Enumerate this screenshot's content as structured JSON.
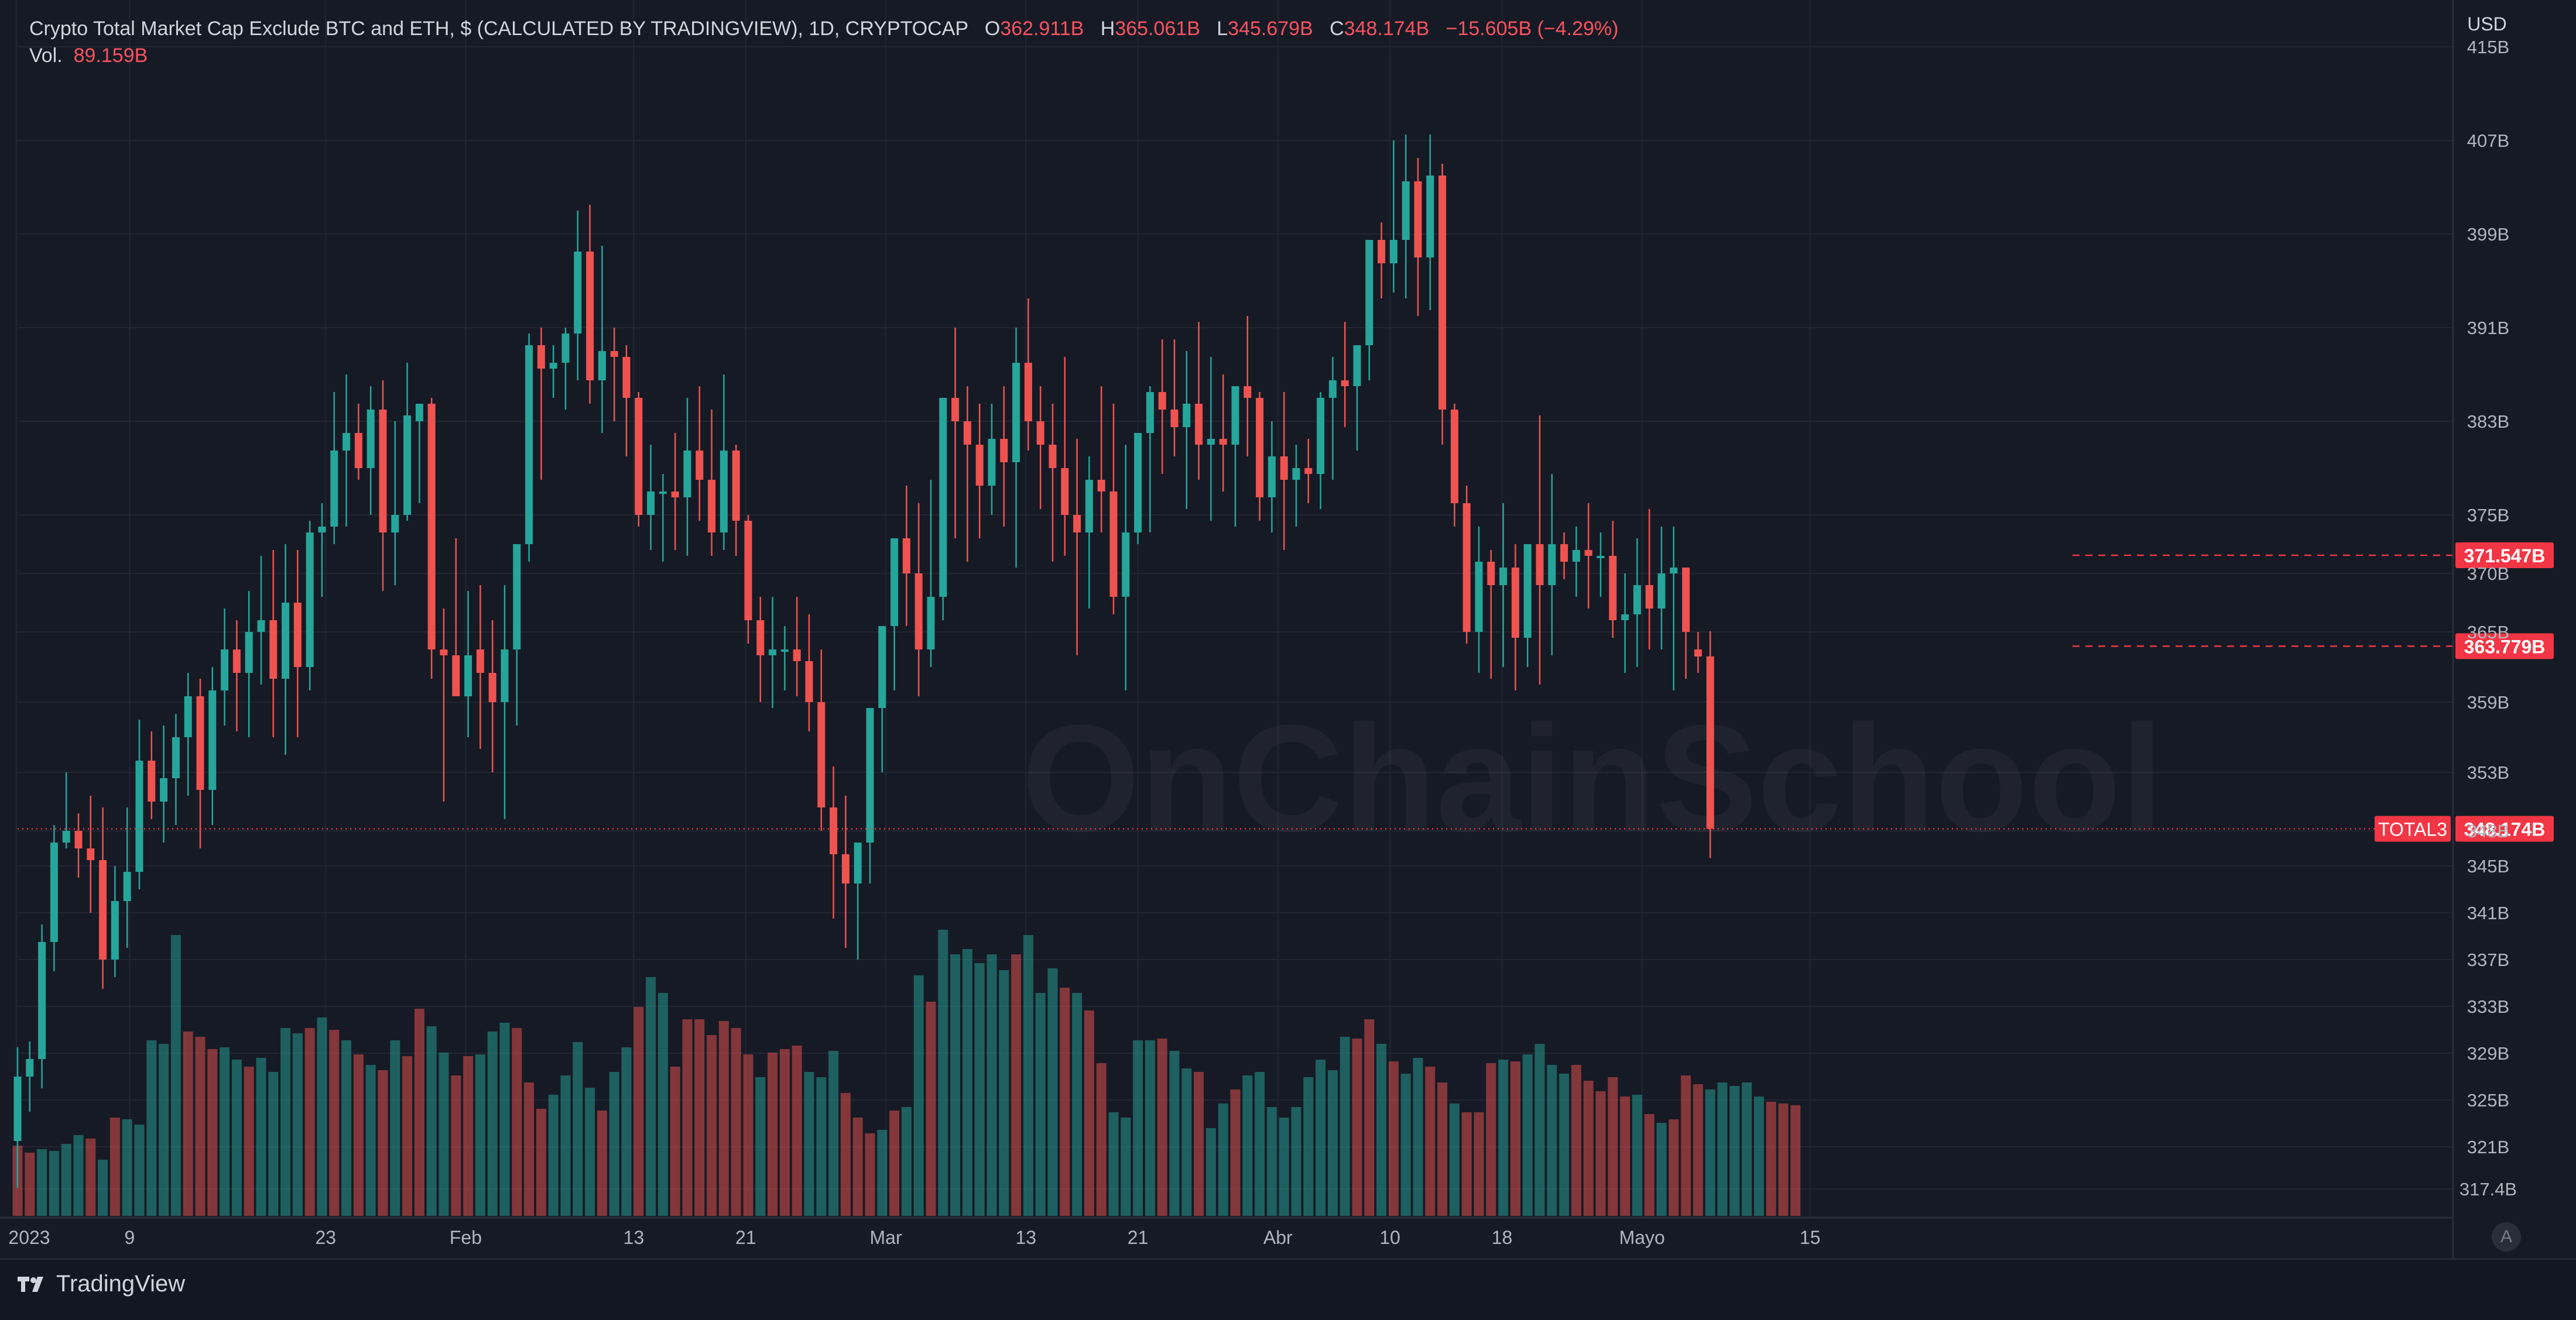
{
  "legend": {
    "symbol": "Crypto Total Market Cap Exclude BTC and ETH, $ (CALCULATED BY TRADINGVIEW), 1D, CRYPTOCAP",
    "o_label": "O",
    "o_val": "362.911B",
    "h_label": "H",
    "h_val": "365.061B",
    "l_label": "L",
    "l_val": "345.679B",
    "c_label": "C",
    "c_val": "348.174B",
    "change": "−15.605B (−4.29%)",
    "vol_label": "Vol.",
    "vol_val": "89.159B"
  },
  "brand": "TradingView",
  "watermark": "OnChainSchool",
  "auto_button": "A",
  "colors": {
    "up": "#26a69a",
    "down": "#ef5350",
    "bg": "#161a25",
    "grid": "#232632",
    "text": "#b2b5be",
    "badge": "#f23645"
  },
  "chart_data": {
    "type": "candlestick",
    "title": "Crypto Total Market Cap Exclude BTC and ETH, $ (CALCULATED BY TRADINGVIEW), 1D, CRYPTOCAP",
    "currency": "USD",
    "y_unit": "B",
    "ylim": [
      316,
      416
    ],
    "y_ticks": [
      "415B",
      "407B",
      "399B",
      "391B",
      "383B",
      "375B",
      "370B",
      "365B",
      "359B",
      "353B",
      "348B",
      "345B",
      "341B",
      "337B",
      "333B",
      "329B",
      "325B",
      "321B",
      "317.4B"
    ],
    "x_ticks": [
      "2023",
      "9",
      "23",
      "Feb",
      "13",
      "21",
      "Mar",
      "13",
      "21",
      "Abr",
      "10",
      "18",
      "Mayo",
      "15"
    ],
    "grid": true,
    "price_scale_labels": [
      {
        "label": "371.547B",
        "value": 371.547,
        "style": "dashed"
      },
      {
        "label": "363.779B",
        "value": 363.779,
        "style": "dashed"
      },
      {
        "label": "348.174B",
        "value": 348.174,
        "style": "dotted",
        "tag": "TOTAL3"
      }
    ],
    "series_ohlc": [
      [
        321.5,
        329.5,
        317.5,
        327.0
      ],
      [
        327.0,
        330.0,
        324.0,
        328.5
      ],
      [
        328.5,
        340.0,
        326.0,
        338.5
      ],
      [
        338.5,
        348.5,
        336.0,
        347.0
      ],
      [
        347.0,
        353.0,
        346.5,
        348.0
      ],
      [
        348.0,
        349.5,
        344.0,
        346.5
      ],
      [
        346.5,
        351.0,
        341.0,
        345.5
      ],
      [
        345.5,
        350.0,
        334.5,
        337.0
      ],
      [
        337.0,
        345.0,
        335.5,
        342.0
      ],
      [
        342.0,
        350.0,
        338.0,
        344.5
      ],
      [
        344.5,
        357.5,
        343.0,
        354.0
      ],
      [
        354.0,
        356.5,
        349.0,
        350.5
      ],
      [
        350.5,
        357.0,
        347.0,
        352.5
      ],
      [
        352.5,
        358.0,
        348.5,
        356.0
      ],
      [
        356.0,
        361.5,
        351.0,
        359.5
      ],
      [
        359.5,
        361.0,
        346.5,
        351.5
      ],
      [
        351.5,
        362.0,
        348.5,
        360.0
      ],
      [
        360.0,
        367.0,
        357.0,
        363.5
      ],
      [
        363.5,
        366.0,
        356.5,
        361.5
      ],
      [
        361.5,
        368.5,
        356.0,
        365.0
      ],
      [
        365.0,
        371.5,
        360.5,
        366.0
      ],
      [
        366.0,
        372.0,
        356.0,
        361.0
      ],
      [
        361.0,
        372.5,
        354.5,
        367.5
      ],
      [
        367.5,
        372.0,
        356.0,
        362.0
      ],
      [
        362.0,
        374.5,
        360.0,
        373.5
      ],
      [
        373.5,
        376.0,
        368.0,
        374.0
      ],
      [
        374.0,
        385.5,
        372.5,
        380.5
      ],
      [
        380.5,
        387.0,
        374.0,
        382.0
      ],
      [
        382.0,
        384.5,
        378.0,
        379.0
      ],
      [
        379.0,
        386.0,
        375.0,
        384.0
      ],
      [
        384.0,
        386.5,
        368.5,
        373.5
      ],
      [
        373.5,
        383.0,
        369.0,
        375.0
      ],
      [
        375.0,
        388.0,
        374.5,
        383.5
      ],
      [
        383.0,
        384.5,
        376.0,
        384.5
      ],
      [
        384.5,
        385.0,
        361.0,
        363.5
      ],
      [
        363.5,
        367.0,
        350.5,
        363.0
      ],
      [
        363.0,
        373.0,
        360.0,
        359.5
      ],
      [
        359.5,
        368.5,
        356.0,
        363.0
      ],
      [
        363.5,
        369.0,
        355.0,
        361.5
      ],
      [
        361.5,
        366.0,
        353.0,
        359.0
      ],
      [
        359.0,
        369.0,
        349.0,
        363.5
      ],
      [
        363.5,
        369.5,
        357.0,
        372.5
      ],
      [
        372.5,
        390.5,
        371.0,
        389.5
      ],
      [
        389.5,
        391.0,
        378.0,
        387.5
      ],
      [
        387.5,
        389.5,
        385.0,
        388.0
      ],
      [
        388.0,
        391.0,
        384.0,
        390.5
      ],
      [
        390.5,
        401.0,
        386.5,
        397.5
      ],
      [
        397.5,
        401.5,
        384.5,
        386.5
      ],
      [
        386.5,
        398.0,
        382.0,
        389.0
      ],
      [
        389.0,
        391.0,
        383.0,
        388.5
      ],
      [
        388.5,
        389.5,
        380.0,
        385.0
      ],
      [
        385.0,
        385.5,
        374.0,
        375.0
      ],
      [
        375.0,
        381.0,
        372.0,
        377.0
      ],
      [
        377.0,
        378.5,
        371.0,
        377.0
      ],
      [
        377.0,
        382.0,
        372.0,
        376.5
      ],
      [
        376.5,
        385.0,
        371.5,
        380.5
      ],
      [
        380.5,
        386.0,
        374.5,
        378.0
      ],
      [
        378.0,
        384.0,
        371.5,
        373.5
      ],
      [
        373.5,
        387.0,
        372.0,
        380.5
      ],
      [
        380.5,
        381.0,
        371.5,
        374.5
      ],
      [
        374.5,
        375.0,
        364.0,
        366.0
      ],
      [
        366.0,
        368.0,
        359.0,
        363.0
      ],
      [
        363.0,
        368.0,
        358.5,
        363.5
      ],
      [
        363.5,
        365.5,
        360.0,
        363.5
      ],
      [
        363.5,
        368.0,
        359.5,
        362.5
      ],
      [
        362.5,
        366.5,
        356.5,
        359.0
      ],
      [
        359.0,
        363.5,
        348.0,
        350.0
      ],
      [
        350.0,
        353.5,
        340.5,
        346.0
      ],
      [
        346.0,
        351.0,
        338.0,
        343.5
      ],
      [
        343.5,
        346.0,
        337.0,
        347.0
      ],
      [
        347.0,
        357.0,
        343.5,
        358.5
      ],
      [
        358.5,
        365.0,
        353.0,
        365.5
      ],
      [
        365.5,
        372.0,
        360.0,
        373.0
      ],
      [
        373.0,
        377.5,
        365.5,
        370.0
      ],
      [
        370.0,
        376.0,
        359.5,
        363.5
      ],
      [
        363.5,
        378.0,
        362.0,
        368.0
      ],
      [
        368.0,
        381.5,
        366.0,
        385.0
      ],
      [
        385.0,
        391.0,
        373.0,
        383.0
      ],
      [
        383.0,
        386.0,
        371.0,
        381.0
      ],
      [
        381.0,
        384.5,
        373.0,
        377.5
      ],
      [
        377.5,
        384.5,
        375.0,
        381.5
      ],
      [
        381.5,
        386.0,
        374.0,
        379.5
      ],
      [
        379.5,
        391.0,
        370.5,
        388.0
      ],
      [
        388.0,
        393.5,
        380.5,
        383.0
      ],
      [
        383.0,
        386.0,
        375.5,
        381.0
      ],
      [
        381.0,
        384.5,
        371.0,
        379.0
      ],
      [
        379.0,
        388.5,
        371.5,
        375.0
      ],
      [
        375.0,
        381.5,
        363.0,
        373.5
      ],
      [
        373.5,
        380.0,
        367.0,
        378.0
      ],
      [
        378.0,
        386.0,
        373.5,
        377.0
      ],
      [
        377.0,
        384.5,
        366.5,
        368.0
      ],
      [
        368.0,
        381.0,
        360.0,
        373.5
      ],
      [
        373.5,
        381.5,
        372.5,
        382.0
      ],
      [
        382.0,
        386.0,
        373.5,
        385.5
      ],
      [
        385.5,
        390.0,
        378.5,
        384.0
      ],
      [
        384.0,
        390.0,
        380.0,
        382.5
      ],
      [
        382.5,
        389.0,
        375.5,
        384.5
      ],
      [
        384.5,
        391.5,
        378.0,
        381.0
      ],
      [
        381.0,
        388.5,
        374.5,
        381.5
      ],
      [
        381.5,
        387.0,
        377.0,
        381.0
      ],
      [
        381.0,
        385.0,
        374.0,
        386.0
      ],
      [
        386.0,
        392.0,
        380.0,
        385.0
      ],
      [
        385.0,
        385.5,
        374.5,
        376.5
      ],
      [
        376.5,
        383.0,
        373.5,
        380.0
      ],
      [
        380.0,
        385.5,
        372.0,
        378.0
      ],
      [
        378.0,
        381.0,
        374.0,
        379.0
      ],
      [
        379.0,
        381.5,
        376.0,
        378.5
      ],
      [
        378.5,
        385.5,
        375.5,
        385.0
      ],
      [
        385.0,
        388.5,
        378.0,
        386.5
      ],
      [
        386.5,
        391.5,
        382.5,
        386.0
      ],
      [
        386.0,
        388.0,
        380.5,
        389.5
      ],
      [
        389.5,
        393.0,
        386.5,
        398.5
      ],
      [
        398.5,
        400.0,
        393.5,
        396.5
      ],
      [
        396.5,
        407.0,
        394.0,
        398.5
      ],
      [
        398.5,
        407.5,
        393.5,
        403.5
      ],
      [
        403.5,
        405.5,
        392.0,
        397.0
      ],
      [
        397.0,
        407.5,
        392.5,
        404.0
      ],
      [
        404.0,
        405.0,
        381.0,
        384.0
      ],
      [
        384.0,
        384.5,
        374.0,
        376.0
      ],
      [
        376.0,
        377.5,
        364.0,
        365.0
      ],
      [
        365.0,
        374.0,
        361.5,
        371.0
      ],
      [
        371.0,
        372.0,
        361.0,
        369.0
      ],
      [
        369.0,
        376.0,
        362.0,
        370.5
      ],
      [
        370.5,
        372.5,
        360.0,
        364.5
      ],
      [
        364.5,
        370.0,
        362.0,
        372.5
      ],
      [
        372.5,
        383.5,
        360.5,
        369.0
      ],
      [
        369.0,
        378.5,
        363.0,
        372.5
      ],
      [
        372.5,
        373.5,
        369.5,
        371.0
      ],
      [
        371.0,
        374.0,
        368.0,
        372.0
      ],
      [
        372.0,
        376.0,
        367.0,
        371.5
      ],
      [
        371.5,
        373.5,
        368.0,
        371.5
      ],
      [
        371.5,
        374.5,
        364.5,
        366.0
      ],
      [
        366.0,
        370.0,
        361.5,
        366.5
      ],
      [
        366.5,
        373.0,
        362.0,
        369.0
      ],
      [
        369.0,
        375.5,
        363.5,
        367.0
      ],
      [
        367.0,
        374.0,
        363.5,
        370.0
      ],
      [
        370.0,
        374.0,
        360.0,
        370.5
      ],
      [
        370.5,
        370.5,
        361.0,
        365.0
      ],
      [
        363.5,
        365.0,
        361.5,
        362.9
      ],
      [
        362.911,
        365.061,
        345.679,
        348.174
      ]
    ],
    "volume": [
      [
        0,
        40
      ],
      [
        0,
        36
      ],
      [
        1,
        38
      ],
      [
        1,
        37
      ],
      [
        1,
        41
      ],
      [
        1,
        46
      ],
      [
        0,
        44
      ],
      [
        1,
        32
      ],
      [
        0,
        56
      ],
      [
        1,
        55
      ],
      [
        1,
        52
      ],
      [
        1,
        100
      ],
      [
        1,
        98
      ],
      [
        1,
        160
      ],
      [
        0,
        105
      ],
      [
        0,
        102
      ],
      [
        0,
        95
      ],
      [
        1,
        96
      ],
      [
        1,
        89
      ],
      [
        0,
        85
      ],
      [
        1,
        90
      ],
      [
        1,
        82
      ],
      [
        1,
        107
      ],
      [
        1,
        104
      ],
      [
        0,
        107
      ],
      [
        1,
        113
      ],
      [
        0,
        106
      ],
      [
        1,
        100
      ],
      [
        0,
        92
      ],
      [
        1,
        86
      ],
      [
        0,
        83
      ],
      [
        1,
        100
      ],
      [
        0,
        91
      ],
      [
        0,
        118
      ],
      [
        1,
        108
      ],
      [
        1,
        93
      ],
      [
        0,
        80
      ],
      [
        0,
        91
      ],
      [
        1,
        92
      ],
      [
        1,
        105
      ],
      [
        1,
        110
      ],
      [
        0,
        107
      ],
      [
        0,
        76
      ],
      [
        0,
        61
      ],
      [
        1,
        69
      ],
      [
        1,
        80
      ],
      [
        1,
        99
      ],
      [
        1,
        73
      ],
      [
        0,
        60
      ],
      [
        1,
        82
      ],
      [
        1,
        96
      ],
      [
        0,
        119
      ],
      [
        1,
        136
      ],
      [
        1,
        127
      ],
      [
        0,
        85
      ],
      [
        0,
        112
      ],
      [
        0,
        112
      ],
      [
        0,
        103
      ],
      [
        0,
        111
      ],
      [
        0,
        107
      ],
      [
        0,
        92
      ],
      [
        1,
        79
      ],
      [
        0,
        93
      ],
      [
        0,
        95
      ],
      [
        0,
        97
      ],
      [
        1,
        82
      ],
      [
        1,
        79
      ],
      [
        1,
        94
      ],
      [
        0,
        70
      ],
      [
        0,
        56
      ],
      [
        0,
        47
      ],
      [
        1,
        49
      ],
      [
        0,
        60
      ],
      [
        1,
        62
      ],
      [
        1,
        137
      ],
      [
        0,
        122
      ],
      [
        1,
        163
      ],
      [
        1,
        149
      ],
      [
        1,
        152
      ],
      [
        1,
        144
      ],
      [
        1,
        149
      ],
      [
        1,
        140
      ],
      [
        0,
        149
      ],
      [
        1,
        160
      ],
      [
        1,
        127
      ],
      [
        1,
        141
      ],
      [
        0,
        130
      ],
      [
        1,
        127
      ],
      [
        0,
        117
      ],
      [
        0,
        87
      ],
      [
        1,
        59
      ],
      [
        1,
        56
      ],
      [
        1,
        100
      ],
      [
        1,
        100
      ],
      [
        0,
        101
      ],
      [
        1,
        94
      ],
      [
        1,
        84
      ],
      [
        0,
        82
      ],
      [
        1,
        50
      ],
      [
        1,
        64
      ],
      [
        0,
        72
      ],
      [
        1,
        80
      ],
      [
        1,
        82
      ],
      [
        1,
        62
      ],
      [
        1,
        56
      ],
      [
        1,
        62
      ],
      [
        1,
        79
      ],
      [
        1,
        89
      ],
      [
        1,
        83
      ],
      [
        1,
        102
      ],
      [
        0,
        101
      ],
      [
        0,
        112
      ],
      [
        1,
        98
      ],
      [
        0,
        88
      ],
      [
        1,
        81
      ],
      [
        1,
        90
      ],
      [
        0,
        85
      ],
      [
        0,
        76
      ],
      [
        1,
        64
      ],
      [
        0,
        59
      ],
      [
        0,
        59
      ],
      [
        0,
        87
      ],
      [
        1,
        89
      ],
      [
        0,
        88
      ],
      [
        1,
        92
      ],
      [
        1,
        98
      ],
      [
        1,
        86
      ],
      [
        1,
        81
      ],
      [
        0,
        86
      ],
      [
        0,
        77
      ],
      [
        0,
        71
      ],
      [
        0,
        79
      ],
      [
        0,
        68
      ],
      [
        1,
        69
      ],
      [
        0,
        58
      ],
      [
        1,
        53
      ],
      [
        0,
        55
      ],
      [
        0,
        80
      ],
      [
        0,
        75
      ],
      [
        1,
        72
      ],
      [
        1,
        76
      ],
      [
        1,
        74
      ],
      [
        1,
        76
      ],
      [
        1,
        68
      ],
      [
        0,
        65
      ],
      [
        0,
        64
      ],
      [
        0,
        63
      ]
    ]
  }
}
